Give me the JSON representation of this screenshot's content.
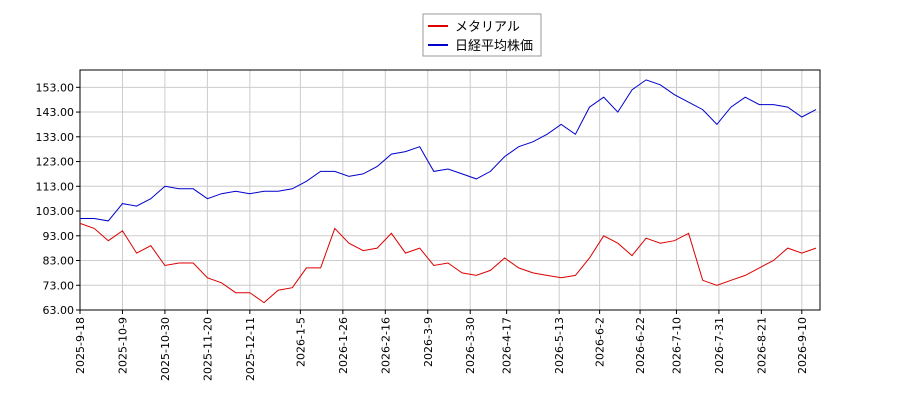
{
  "chart_data": {
    "type": "line",
    "x": [
      "2025-9-18",
      "2025-9-25",
      "2025-10-2",
      "2025-10-9",
      "2025-10-16",
      "2025-10-23",
      "2025-10-30",
      "2025-11-6",
      "2025-11-13",
      "2025-11-20",
      "2025-11-27",
      "2025-12-4",
      "2025-12-11",
      "2025-12-18",
      "2025-12-25",
      "2026-1-1",
      "2026-1-8",
      "2026-1-15",
      "2026-1-22",
      "2026-1-29",
      "2026-2-5",
      "2026-2-12",
      "2026-2-19",
      "2026-2-26",
      "2026-3-5",
      "2026-3-12",
      "2026-3-19",
      "2026-3-26",
      "2026-4-2",
      "2026-4-9",
      "2026-4-16",
      "2026-4-23",
      "2026-4-30",
      "2026-5-7",
      "2026-5-14",
      "2026-5-21",
      "2026-5-28",
      "2026-6-4",
      "2026-6-11",
      "2026-6-18",
      "2026-6-25",
      "2026-7-2",
      "2026-7-9",
      "2026-7-16",
      "2026-7-23",
      "2026-7-30",
      "2026-8-6",
      "2026-8-13",
      "2026-8-20",
      "2026-8-27",
      "2026-9-3",
      "2026-9-10",
      "2026-9-17"
    ],
    "series": [
      {
        "name": "メタリアル",
        "color": "#dd0000",
        "values": [
          98,
          96,
          91,
          95,
          86,
          89,
          81,
          82,
          82,
          76,
          74,
          70,
          70,
          66,
          71,
          72,
          80,
          80,
          96,
          90,
          87,
          88,
          94,
          86,
          88,
          81,
          82,
          78,
          77,
          79,
          84,
          80,
          78,
          77,
          76,
          77,
          84,
          93,
          90,
          85,
          92,
          90,
          91,
          94,
          75,
          73,
          75,
          77,
          80,
          83,
          88,
          86,
          88
        ]
      },
      {
        "name": "日経平均株価",
        "color": "#0000cc",
        "values": [
          100,
          100,
          99,
          106,
          105,
          108,
          113,
          112,
          112,
          108,
          110,
          111,
          110,
          111,
          111,
          112,
          115,
          119,
          119,
          117,
          118,
          121,
          126,
          127,
          129,
          119,
          120,
          118,
          116,
          119,
          125,
          129,
          131,
          134,
          138,
          134,
          145,
          149,
          143,
          152,
          156,
          154,
          150,
          147,
          144,
          138,
          145,
          149,
          146,
          146,
          145,
          141,
          144
        ]
      }
    ],
    "xlim": [
      "2025-9-18",
      "2026-9-19"
    ],
    "xticks": [
      "2025-9-18",
      "2025-10-9",
      "2025-10-30",
      "2025-11-20",
      "2025-12-11",
      "2026-1-5",
      "2026-1-26",
      "2026-2-16",
      "2026-3-9",
      "2026-3-30",
      "2026-4-17",
      "2026-5-13",
      "2026-6-2",
      "2026-6-22",
      "2026-7-10",
      "2026-7-31",
      "2026-8-21",
      "2026-9-10"
    ],
    "ylim": [
      63,
      160
    ],
    "yticks": [
      {
        "value": 63,
        "label": "63.00"
      },
      {
        "value": 73,
        "label": "73.00"
      },
      {
        "value": 83,
        "label": "83.00"
      },
      {
        "value": 93,
        "label": "93.00"
      },
      {
        "value": 103,
        "label": "103.00"
      },
      {
        "value": 113,
        "label": "113.00"
      },
      {
        "value": 123,
        "label": "123.00"
      },
      {
        "value": 133,
        "label": "133.00"
      },
      {
        "value": 143,
        "label": "143.00"
      },
      {
        "value": 153,
        "label": "153.00"
      }
    ],
    "grid": true
  }
}
